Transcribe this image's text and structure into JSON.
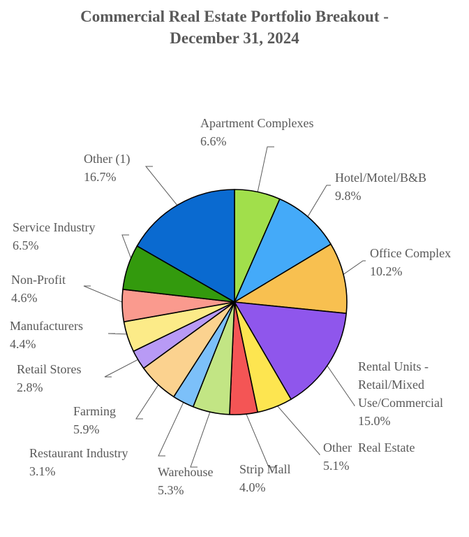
{
  "chart_data": {
    "type": "pie",
    "title": [
      "Commercial Real Estate Portfolio Breakout -",
      "December 31, 2024"
    ],
    "slices": [
      {
        "label": [
          "Apartment Complexes"
        ],
        "pct": "6.6%",
        "value": 6.6,
        "color": "#a1df4b"
      },
      {
        "label": [
          "Hotel/Motel/B&B"
        ],
        "pct": "9.8%",
        "value": 9.8,
        "color": "#44aaf9"
      },
      {
        "label": [
          "Office Complex"
        ],
        "pct": "10.2%",
        "value": 10.2,
        "color": "#f8c050"
      },
      {
        "label": [
          "Rental Units -",
          "Retail/Mixed",
          "Use/Commercial"
        ],
        "pct": "15.0%",
        "value": 15.0,
        "color": "#8f56ec"
      },
      {
        "label": [
          "Other  Real Estate"
        ],
        "pct": "5.1%",
        "value": 5.1,
        "color": "#fde550"
      },
      {
        "label": [
          "Strip Mall"
        ],
        "pct": "4.0%",
        "value": 4.0,
        "color": "#f45555"
      },
      {
        "label": [
          "Warehouse"
        ],
        "pct": "5.3%",
        "value": 5.3,
        "color": "#c2e584"
      },
      {
        "label": [
          "Restaurant Industry"
        ],
        "pct": "3.1%",
        "value": 3.1,
        "color": "#7cc0f9"
      },
      {
        "label": [
          "Farming"
        ],
        "pct": "5.9%",
        "value": 5.9,
        "color": "#fbd28f"
      },
      {
        "label": [
          "Retail Stores"
        ],
        "pct": "2.8%",
        "value": 2.8,
        "color": "#b89af5"
      },
      {
        "label": [
          "Manufacturers"
        ],
        "pct": "4.4%",
        "value": 4.4,
        "color": "#fceb88"
      },
      {
        "label": [
          "Non-Profit"
        ],
        "pct": "4.6%",
        "value": 4.6,
        "color": "#fa9a8e"
      },
      {
        "label": [
          "Service Industry"
        ],
        "pct": "6.5%",
        "value": 6.5,
        "color": "#339a0d"
      },
      {
        "label": [
          "Other (1)"
        ],
        "pct": "16.7%",
        "value": 16.7,
        "color": "#0a6ad0"
      }
    ]
  }
}
